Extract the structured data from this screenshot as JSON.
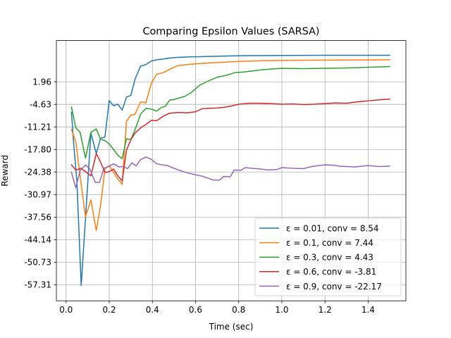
{
  "chart_data": {
    "type": "line",
    "title": "Comparing Epsilon Values (SARSA)",
    "xlabel": "Time (sec)",
    "ylabel": "Reward",
    "xlim": [
      -0.045,
      1.575
    ],
    "ylim": [
      -62.0,
      14.0
    ],
    "x_ticks": [
      0.0,
      0.2,
      0.4,
      0.6,
      0.8,
      1.0,
      1.2,
      1.4
    ],
    "x_tick_labels": [
      "0.0",
      "0.2",
      "0.4",
      "0.6",
      "0.8",
      "1.0",
      "1.2",
      "1.4"
    ],
    "y_ticks": [
      1.96,
      -4.63,
      -11.21,
      -17.8,
      -24.38,
      -30.97,
      -37.56,
      -44.14,
      -50.73,
      -57.31
    ],
    "y_tick_labels": [
      "1.96",
      "-4.63",
      "-11.21",
      "-17.80",
      "-24.38",
      "-30.97",
      "-37.56",
      "-44.14",
      "-50.73",
      "-57.31"
    ],
    "grid": true,
    "legend_position": "lower-right",
    "series": [
      {
        "name": "ε = 0.01, conv = 8.54",
        "color": "#1f77b4",
        "points": [
          [
            0.025,
            -6.9
          ],
          [
            0.035,
            -16
          ],
          [
            0.05,
            -27
          ],
          [
            0.07,
            -57.5
          ],
          [
            0.09,
            -38
          ],
          [
            0.115,
            -13
          ],
          [
            0.14,
            -19
          ],
          [
            0.16,
            -14.5
          ],
          [
            0.18,
            -14.2
          ],
          [
            0.2,
            -3.5
          ],
          [
            0.22,
            -5
          ],
          [
            0.24,
            -4.6
          ],
          [
            0.26,
            -6.3
          ],
          [
            0.28,
            -2.5
          ],
          [
            0.3,
            -2
          ],
          [
            0.32,
            2.8
          ],
          [
            0.345,
            6.5
          ],
          [
            0.37,
            7
          ],
          [
            0.395,
            8
          ],
          [
            0.42,
            8.4
          ],
          [
            0.45,
            8.6
          ],
          [
            0.48,
            8.9
          ],
          [
            0.52,
            9.1
          ],
          [
            0.58,
            9.25
          ],
          [
            0.65,
            9.35
          ],
          [
            0.75,
            9.5
          ],
          [
            0.85,
            9.6
          ],
          [
            1.0,
            9.65
          ],
          [
            1.2,
            9.7
          ],
          [
            1.4,
            9.7
          ],
          [
            1.5,
            9.7
          ]
        ]
      },
      {
        "name": "ε = 0.1, conv = 7.44",
        "color": "#ff7f0e",
        "points": [
          [
            0.025,
            -12
          ],
          [
            0.045,
            -15.5
          ],
          [
            0.07,
            -28
          ],
          [
            0.09,
            -37.5
          ],
          [
            0.115,
            -32.5
          ],
          [
            0.14,
            -41.5
          ],
          [
            0.16,
            -34
          ],
          [
            0.18,
            -23.5
          ],
          [
            0.2,
            -22.5
          ],
          [
            0.24,
            -26.5
          ],
          [
            0.26,
            -28
          ],
          [
            0.28,
            -9.5
          ],
          [
            0.3,
            -7.8
          ],
          [
            0.32,
            -7.5
          ],
          [
            0.345,
            -3.9
          ],
          [
            0.37,
            -4.2
          ],
          [
            0.395,
            1.5
          ],
          [
            0.42,
            4.2
          ],
          [
            0.45,
            4.6
          ],
          [
            0.48,
            5.6
          ],
          [
            0.52,
            6.7
          ],
          [
            0.55,
            6.9
          ],
          [
            0.6,
            7.2
          ],
          [
            0.7,
            7.6
          ],
          [
            0.8,
            7.9
          ],
          [
            0.9,
            8.1
          ],
          [
            1.0,
            8.2
          ],
          [
            1.2,
            8.3
          ],
          [
            1.4,
            8.35
          ],
          [
            1.5,
            8.4
          ]
        ]
      },
      {
        "name": "ε = 0.3, conv = 4.43",
        "color": "#2ca02c",
        "points": [
          [
            0.025,
            -5.4
          ],
          [
            0.045,
            -11.5
          ],
          [
            0.065,
            -12.8
          ],
          [
            0.09,
            -20.3
          ],
          [
            0.115,
            -12.8
          ],
          [
            0.14,
            -11.8
          ],
          [
            0.16,
            -14.8
          ],
          [
            0.18,
            -15.2
          ],
          [
            0.2,
            -16.2
          ],
          [
            0.22,
            -17.8
          ],
          [
            0.24,
            -19.5
          ],
          [
            0.26,
            -20.5
          ],
          [
            0.28,
            -14.7
          ],
          [
            0.3,
            -14.9
          ],
          [
            0.32,
            -12
          ],
          [
            0.345,
            -7.5
          ],
          [
            0.37,
            -5.8
          ],
          [
            0.395,
            -6
          ],
          [
            0.42,
            -6.6
          ],
          [
            0.44,
            -5.6
          ],
          [
            0.46,
            -5.2
          ],
          [
            0.48,
            -3.4
          ],
          [
            0.5,
            -3.2
          ],
          [
            0.55,
            -2.3
          ],
          [
            0.58,
            -1.2
          ],
          [
            0.62,
            1
          ],
          [
            0.66,
            2.2
          ],
          [
            0.7,
            3.3
          ],
          [
            0.74,
            3.8
          ],
          [
            0.78,
            4.6
          ],
          [
            0.82,
            4.8
          ],
          [
            0.86,
            5.1
          ],
          [
            0.9,
            5.4
          ],
          [
            0.95,
            5.7
          ],
          [
            1.0,
            5.9
          ],
          [
            1.1,
            5.8
          ],
          [
            1.2,
            5.9
          ],
          [
            1.3,
            6.0
          ],
          [
            1.4,
            6.2
          ],
          [
            1.5,
            6.4
          ]
        ]
      },
      {
        "name": "ε = 0.6, conv = -3.81",
        "color": "#d62728",
        "points": [
          [
            0.025,
            -22.3
          ],
          [
            0.045,
            -23.8
          ],
          [
            0.07,
            -23.3
          ],
          [
            0.09,
            -24.3
          ],
          [
            0.115,
            -25.5
          ],
          [
            0.14,
            -19
          ],
          [
            0.16,
            -21.5
          ],
          [
            0.18,
            -24.5
          ],
          [
            0.2,
            -24.3
          ],
          [
            0.22,
            -23.5
          ],
          [
            0.24,
            -25.5
          ],
          [
            0.26,
            -27
          ],
          [
            0.28,
            -18
          ],
          [
            0.3,
            -15
          ],
          [
            0.32,
            -13
          ],
          [
            0.345,
            -11.5
          ],
          [
            0.37,
            -10.5
          ],
          [
            0.395,
            -9.3
          ],
          [
            0.42,
            -9.4
          ],
          [
            0.45,
            -8.1
          ],
          [
            0.48,
            -7.2
          ],
          [
            0.52,
            -7
          ],
          [
            0.56,
            -7.1
          ],
          [
            0.6,
            -6.8
          ],
          [
            0.63,
            -5.9
          ],
          [
            0.66,
            -5.8
          ],
          [
            0.7,
            -5.7
          ],
          [
            0.73,
            -5.5
          ],
          [
            0.76,
            -5.2
          ],
          [
            0.8,
            -4.6
          ],
          [
            0.85,
            -4.3
          ],
          [
            0.9,
            -4.3
          ],
          [
            0.95,
            -4.4
          ],
          [
            1.0,
            -4.6
          ],
          [
            1.05,
            -4.5
          ],
          [
            1.1,
            -4.7
          ],
          [
            1.15,
            -4.6
          ],
          [
            1.2,
            -4.4
          ],
          [
            1.25,
            -4.2
          ],
          [
            1.3,
            -4.3
          ],
          [
            1.35,
            -3.9
          ],
          [
            1.4,
            -3.6
          ],
          [
            1.45,
            -3.3
          ],
          [
            1.5,
            -3.1
          ]
        ]
      },
      {
        "name": "ε = 0.9, conv = -22.17",
        "color": "#9467bd",
        "points": [
          [
            0.025,
            -24.5
          ],
          [
            0.045,
            -29
          ],
          [
            0.065,
            -24
          ],
          [
            0.09,
            -22.3
          ],
          [
            0.11,
            -23.5
          ],
          [
            0.135,
            -27.4
          ],
          [
            0.155,
            -27.4
          ],
          [
            0.175,
            -23.3
          ],
          [
            0.195,
            -22.8
          ],
          [
            0.22,
            -22
          ],
          [
            0.245,
            -22.9
          ],
          [
            0.265,
            -22.8
          ],
          [
            0.285,
            -23.4
          ],
          [
            0.305,
            -21.7
          ],
          [
            0.325,
            -22.6
          ],
          [
            0.345,
            -20.8
          ],
          [
            0.37,
            -20
          ],
          [
            0.395,
            -20.7
          ],
          [
            0.42,
            -22
          ],
          [
            0.445,
            -22.3
          ],
          [
            0.47,
            -22.5
          ],
          [
            0.5,
            -23.3
          ],
          [
            0.53,
            -24
          ],
          [
            0.56,
            -24.6
          ],
          [
            0.6,
            -25.2
          ],
          [
            0.63,
            -25.6
          ],
          [
            0.66,
            -26.2
          ],
          [
            0.68,
            -26.7
          ],
          [
            0.71,
            -26.8
          ],
          [
            0.73,
            -25.7
          ],
          [
            0.76,
            -25.8
          ],
          [
            0.78,
            -23.8
          ],
          [
            0.81,
            -23.9
          ],
          [
            0.83,
            -23.1
          ],
          [
            0.86,
            -23.3
          ],
          [
            0.9,
            -23.5
          ],
          [
            0.94,
            -23.8
          ],
          [
            0.98,
            -23.6
          ],
          [
            1.0,
            -23.1
          ],
          [
            1.05,
            -23.3
          ],
          [
            1.1,
            -23.4
          ],
          [
            1.13,
            -22.9
          ],
          [
            1.17,
            -22.5
          ],
          [
            1.2,
            -22.3
          ],
          [
            1.24,
            -22.4
          ],
          [
            1.27,
            -22.7
          ],
          [
            1.3,
            -22.8
          ],
          [
            1.34,
            -22.9
          ],
          [
            1.4,
            -22.5
          ],
          [
            1.45,
            -22.8
          ],
          [
            1.5,
            -22.7
          ]
        ]
      }
    ]
  }
}
